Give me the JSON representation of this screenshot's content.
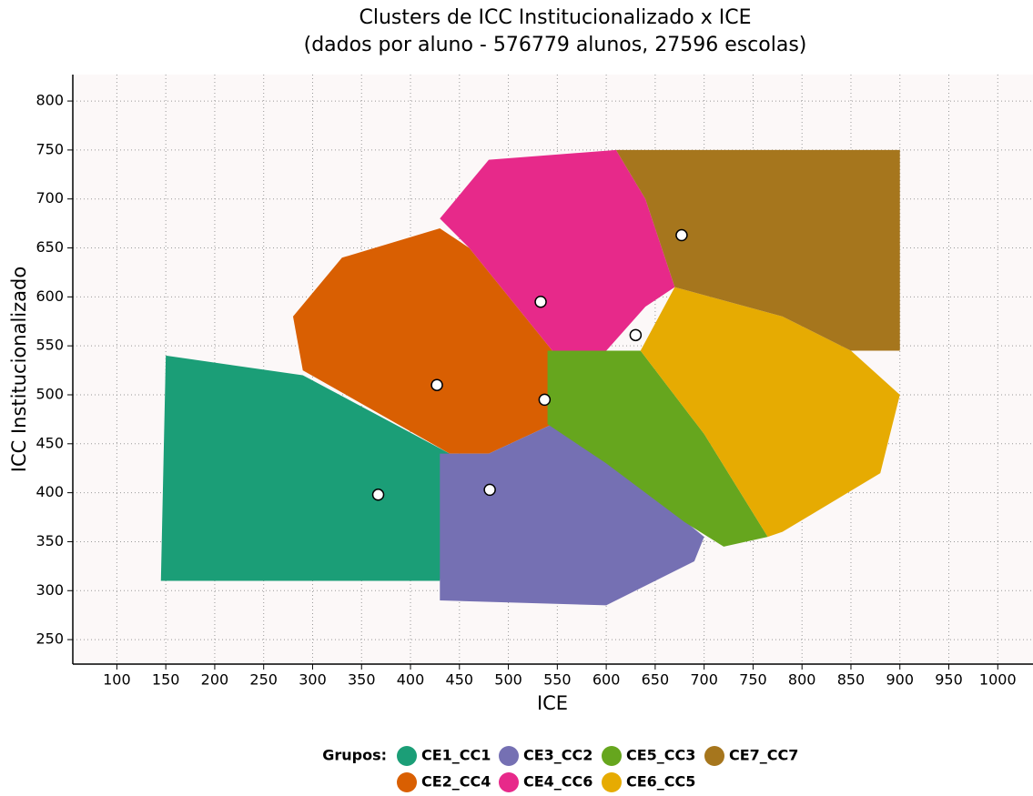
{
  "chart_data": {
    "type": "scatter",
    "title": "Clusters de ICC Institucionalizado x ICE",
    "subtitle": "(dados por aluno - 576779 alunos, 27596 escolas)",
    "x_label": "ICE",
    "y_label": "ICC Institucionalizado",
    "legend_title": "Grupos:",
    "xlim": [
      55,
      1036
    ],
    "ylim": [
      225,
      827
    ],
    "xticks": [
      100,
      150,
      200,
      250,
      300,
      350,
      400,
      450,
      500,
      550,
      600,
      650,
      700,
      750,
      800,
      850,
      900,
      950,
      1000
    ],
    "yticks": [
      250,
      300,
      350,
      400,
      450,
      500,
      550,
      600,
      650,
      700,
      750,
      800
    ],
    "grid": true,
    "series": [
      {
        "name": "CE1_CC1",
        "color": "#1b9e77",
        "x": [
          145,
          150,
          290,
          440,
          430
        ],
        "y": [
          310,
          540,
          520,
          440,
          310
        ],
        "centroid_x": 367,
        "centroid_y": 398
      },
      {
        "name": "CE2_CC4",
        "color": "#d95f02",
        "x": [
          290,
          440,
          480,
          545,
          545,
          460,
          430,
          330,
          280
        ],
        "y": [
          525,
          440,
          440,
          470,
          545,
          650,
          670,
          640,
          580
        ],
        "centroid_x": 427,
        "centroid_y": 510
      },
      {
        "name": "CE3_CC2",
        "color": "#7570b3",
        "x": [
          430,
          480,
          545,
          620,
          700,
          690,
          600,
          430
        ],
        "y": [
          440,
          440,
          470,
          420,
          355,
          330,
          285,
          290
        ],
        "centroid_x": 481,
        "centroid_y": 403
      },
      {
        "name": "CE4_CC6",
        "color": "#e7298a",
        "x": [
          460,
          545,
          600,
          640,
          670,
          640,
          610,
          480,
          430
        ],
        "y": [
          650,
          545,
          545,
          590,
          610,
          700,
          750,
          740,
          680
        ],
        "centroid_x": 533,
        "centroid_y": 595
      },
      {
        "name": "CE5_CC3",
        "color": "#66a61e",
        "x": [
          540,
          635,
          700,
          765,
          720,
          680,
          600,
          540
        ],
        "y": [
          545,
          545,
          460,
          355,
          345,
          370,
          430,
          470
        ],
        "centroid_x": 537,
        "centroid_y": 495
      },
      {
        "name": "CE6_CC5",
        "color": "#e6ab02",
        "x": [
          635,
          670,
          780,
          850,
          900,
          880,
          780,
          765,
          700
        ],
        "y": [
          545,
          610,
          580,
          545,
          500,
          420,
          360,
          355,
          460
        ],
        "centroid_x": 630,
        "centroid_y": 561
      },
      {
        "name": "CE7_CC7",
        "color": "#a6761d",
        "x": [
          610,
          900,
          900,
          850,
          780,
          670,
          640
        ],
        "y": [
          750,
          750,
          545,
          545,
          580,
          610,
          700
        ],
        "centroid_x": 677,
        "centroid_y": 663
      }
    ]
  }
}
